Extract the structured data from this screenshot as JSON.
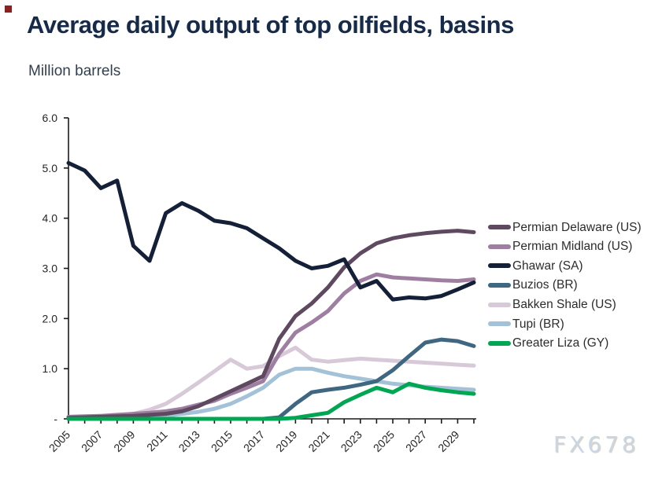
{
  "header": {
    "title": "Average daily output of top oilfields, basins",
    "subtitle": "Million barrels"
  },
  "watermark": {
    "text": "FX678",
    "color": "#c9d7e5"
  },
  "theme": {
    "title_color": "#162a4a",
    "subtitle_color": "#33404f",
    "axis_color": "#1a1a1a",
    "tick_label_color": "#262626",
    "marker_color": "#8e1f1f",
    "background": "#ffffff"
  },
  "chart_data": {
    "type": "line",
    "title": "Average daily output of top oilfields, basins",
    "ylabel": "Million barrels",
    "xlabel": "",
    "grid": false,
    "legend_position": "right",
    "ylim": [
      0,
      6
    ],
    "y_ticks": [
      0,
      1,
      2,
      3,
      4,
      5,
      6
    ],
    "y_tick_labels": [
      "-",
      "1.0",
      "2.0",
      "3.0",
      "4.0",
      "5.0",
      "6.0"
    ],
    "x": [
      2005,
      2006,
      2007,
      2008,
      2009,
      2010,
      2011,
      2012,
      2013,
      2014,
      2015,
      2016,
      2017,
      2018,
      2019,
      2020,
      2021,
      2022,
      2023,
      2024,
      2025,
      2026,
      2027,
      2028,
      2029,
      2030
    ],
    "x_tick_labels": [
      "2005",
      "2007",
      "2009",
      "2011",
      "2013",
      "2015",
      "2017",
      "2019",
      "2021",
      "2023",
      "2025",
      "2027",
      "2029"
    ],
    "draw_order": [
      4,
      5,
      1,
      0,
      3,
      6,
      2
    ],
    "series": [
      {
        "name": "Permian Delaware (US)",
        "color": "#5e4960",
        "values": [
          0.02,
          0.03,
          0.04,
          0.05,
          0.06,
          0.08,
          0.1,
          0.15,
          0.25,
          0.4,
          0.55,
          0.7,
          0.85,
          1.6,
          2.05,
          2.3,
          2.62,
          3.02,
          3.3,
          3.5,
          3.6,
          3.66,
          3.7,
          3.73,
          3.75,
          3.72
        ]
      },
      {
        "name": "Permian Midland (US)",
        "color": "#9f7fa1",
        "values": [
          0.04,
          0.05,
          0.06,
          0.08,
          0.1,
          0.12,
          0.15,
          0.2,
          0.28,
          0.36,
          0.5,
          0.62,
          0.75,
          1.3,
          1.72,
          1.92,
          2.15,
          2.5,
          2.75,
          2.88,
          2.82,
          2.8,
          2.78,
          2.76,
          2.75,
          2.78
        ]
      },
      {
        "name": "Ghawar (SA)",
        "color": "#141f38",
        "values": [
          5.1,
          4.95,
          4.6,
          4.75,
          3.45,
          3.15,
          4.1,
          4.3,
          4.15,
          3.95,
          3.9,
          3.8,
          3.6,
          3.4,
          3.15,
          3.0,
          3.05,
          3.18,
          2.62,
          2.75,
          2.38,
          2.42,
          2.4,
          2.45,
          2.58,
          2.72
        ]
      },
      {
        "name": "Buzios (BR)",
        "color": "#3f6781",
        "values": [
          0,
          0,
          0,
          0,
          0,
          0,
          0,
          0,
          0,
          0,
          0,
          0,
          0,
          0.03,
          0.3,
          0.53,
          0.58,
          0.62,
          0.68,
          0.75,
          0.97,
          1.25,
          1.52,
          1.58,
          1.55,
          1.45
        ]
      },
      {
        "name": "Bakken Shale (US)",
        "color": "#d8c9d8",
        "values": [
          0.02,
          0.03,
          0.04,
          0.06,
          0.1,
          0.18,
          0.3,
          0.5,
          0.72,
          0.95,
          1.18,
          1.0,
          1.05,
          1.25,
          1.42,
          1.18,
          1.14,
          1.17,
          1.2,
          1.18,
          1.16,
          1.14,
          1.12,
          1.1,
          1.08,
          1.06
        ]
      },
      {
        "name": "Tupi (BR)",
        "color": "#a3c2d8",
        "values": [
          0,
          0,
          0,
          0,
          0,
          0.02,
          0.06,
          0.1,
          0.14,
          0.2,
          0.3,
          0.45,
          0.62,
          0.88,
          1.0,
          1.0,
          0.92,
          0.85,
          0.8,
          0.75,
          0.7,
          0.67,
          0.64,
          0.62,
          0.6,
          0.58
        ]
      },
      {
        "name": "Greater Liza (GY)",
        "color": "#00a651",
        "values": [
          0,
          0,
          0,
          0,
          0,
          0,
          0,
          0,
          0,
          0,
          0,
          0,
          0,
          0,
          0.02,
          0.07,
          0.12,
          0.33,
          0.48,
          0.62,
          0.53,
          0.7,
          0.62,
          0.57,
          0.53,
          0.5
        ]
      }
    ]
  }
}
